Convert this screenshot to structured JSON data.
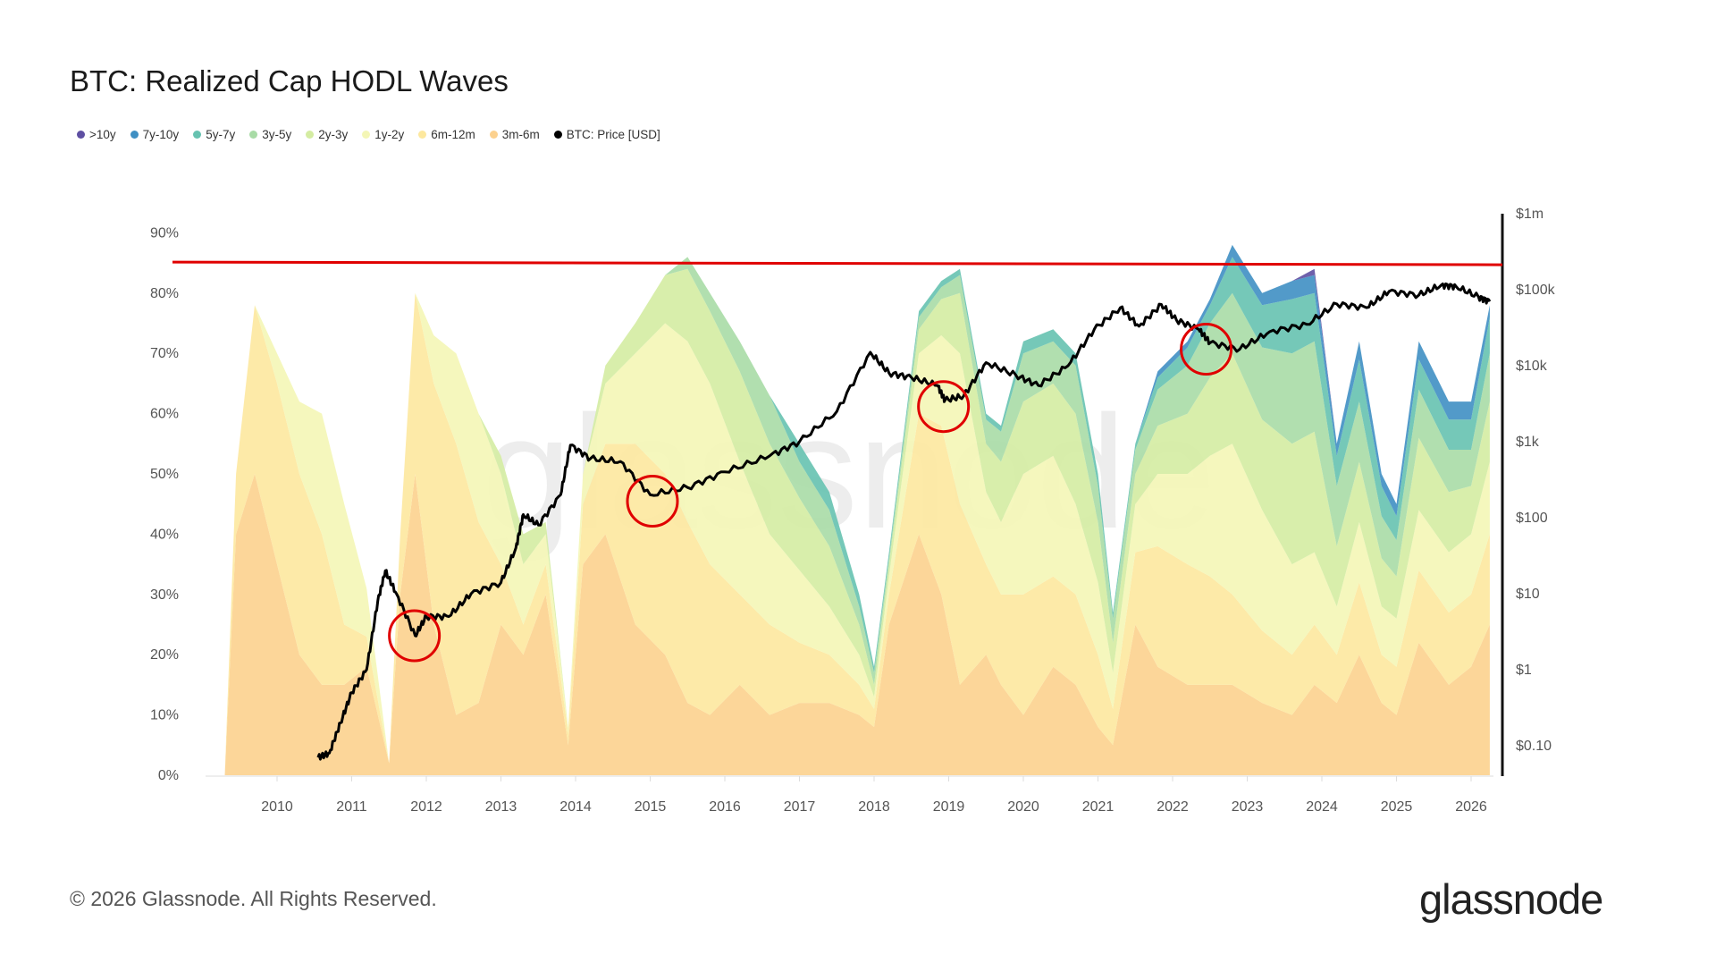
{
  "chart_data": {
    "type": "area",
    "title": "BTC: Realized Cap HODL Waves",
    "y_left_ticks": [
      "0%",
      "10%",
      "20%",
      "30%",
      "40%",
      "50%",
      "60%",
      "70%",
      "80%",
      "90%"
    ],
    "y_left_range": [
      0,
      90
    ],
    "y_right_ticks": [
      "$0.10",
      "$1",
      "$10",
      "$100",
      "$1k",
      "$10k",
      "$100k",
      "$1m"
    ],
    "y_right_range": [
      0.1,
      1000000
    ],
    "y_right_scale": "log",
    "x_ticks": [
      "2010",
      "2011",
      "2012",
      "2013",
      "2014",
      "2015",
      "2016",
      "2017",
      "2018",
      "2019",
      "2020",
      "2021",
      "2022",
      "2023",
      "2024",
      "2025",
      "2026"
    ],
    "x_range": [
      2009.05,
      2026.25
    ],
    "legend_placement": "top-left",
    "stacked": true,
    "dates": [
      2009.3,
      2009.45,
      2009.7,
      2010.0,
      2010.3,
      2010.6,
      2010.9,
      2011.2,
      2011.5,
      2011.65,
      2011.85,
      2012.1,
      2012.4,
      2012.7,
      2013.0,
      2013.3,
      2013.6,
      2013.9,
      2014.1,
      2014.4,
      2014.8,
      2015.2,
      2015.5,
      2015.8,
      2016.2,
      2016.6,
      2017.0,
      2017.4,
      2017.8,
      2018.0,
      2018.2,
      2018.6,
      2018.9,
      2019.15,
      2019.5,
      2019.7,
      2020.0,
      2020.4,
      2020.7,
      2021.0,
      2021.2,
      2021.5,
      2021.8,
      2022.2,
      2022.5,
      2022.8,
      2023.2,
      2023.6,
      2023.9,
      2024.2,
      2024.5,
      2024.8,
      2025.0,
      2025.3,
      2025.7,
      2026.0,
      2026.25
    ],
    "series": [
      {
        "name": ">10y",
        "color": "#5e4fa2",
        "values": [
          0,
          0,
          0,
          0,
          0,
          0,
          0,
          0,
          0,
          0,
          0,
          0,
          0,
          0,
          0,
          0,
          0,
          0,
          0,
          0,
          0,
          0,
          0,
          0,
          0,
          0,
          0,
          0,
          0,
          0,
          0,
          0,
          0,
          0,
          0,
          0,
          0,
          0,
          0,
          0,
          0,
          0,
          0,
          0,
          0,
          0,
          0,
          0,
          1,
          0,
          0,
          0,
          0,
          0,
          0,
          0,
          0
        ]
      },
      {
        "name": "7y-10y",
        "color": "#3f8fc3",
        "values": [
          0,
          0,
          0,
          0,
          0,
          0,
          0,
          0,
          0,
          0,
          0,
          0,
          0,
          0,
          0,
          0,
          0,
          0,
          0,
          0,
          0,
          0,
          0,
          0,
          0,
          0,
          0,
          0,
          0,
          0,
          0,
          0,
          0,
          0,
          0,
          0,
          0,
          0,
          0,
          0,
          0,
          0,
          1,
          1,
          1,
          2,
          2,
          3,
          3,
          2,
          3,
          2,
          2,
          3,
          3,
          3,
          2
        ]
      },
      {
        "name": "5y-7y",
        "color": "#66c2b0",
        "values": [
          0,
          0,
          0,
          0,
          0,
          0,
          0,
          0,
          0,
          0,
          0,
          0,
          0,
          0,
          0,
          0,
          0,
          0,
          0,
          0,
          0,
          0,
          0,
          0,
          0,
          0,
          3,
          3,
          2,
          1,
          1,
          1,
          1,
          1,
          1,
          1,
          2,
          2,
          2,
          2,
          1,
          1,
          2,
          3,
          3,
          6,
          7,
          9,
          8,
          5,
          7,
          5,
          4,
          5,
          5,
          5,
          6
        ]
      },
      {
        "name": "3y-5y",
        "color": "#a8dba6",
        "values": [
          0,
          0,
          0,
          0,
          0,
          0,
          0,
          0,
          0,
          0,
          0,
          0,
          0,
          0,
          0,
          0,
          0,
          0,
          0,
          0,
          0,
          0,
          2,
          3,
          5,
          8,
          6,
          6,
          3,
          2,
          1,
          2,
          2,
          3,
          4,
          5,
          8,
          7,
          8,
          6,
          4,
          4,
          6,
          8,
          9,
          10,
          12,
          15,
          15,
          10,
          10,
          7,
          6,
          8,
          7,
          6,
          8
        ]
      },
      {
        "name": "2y-3y",
        "color": "#d4eca2",
        "values": [
          0,
          0,
          0,
          0,
          0,
          0,
          0,
          0,
          0,
          0,
          0,
          0,
          0,
          0,
          3,
          5,
          2,
          0,
          0,
          3,
          5,
          8,
          12,
          12,
          15,
          15,
          12,
          10,
          5,
          2,
          2,
          4,
          6,
          10,
          8,
          10,
          12,
          12,
          15,
          10,
          5,
          5,
          8,
          10,
          13,
          15,
          15,
          20,
          20,
          10,
          10,
          8,
          7,
          12,
          10,
          8,
          10
        ]
      },
      {
        "name": "1y-2y",
        "color": "#f4f6b6",
        "values": [
          0,
          0,
          0,
          5,
          12,
          20,
          20,
          8,
          0,
          0,
          0,
          8,
          15,
          18,
          15,
          10,
          5,
          1,
          5,
          10,
          15,
          25,
          30,
          30,
          22,
          15,
          12,
          8,
          5,
          2,
          3,
          10,
          15,
          25,
          12,
          12,
          20,
          20,
          15,
          12,
          6,
          8,
          12,
          15,
          20,
          25,
          20,
          15,
          12,
          8,
          10,
          8,
          8,
          10,
          10,
          10,
          12
        ]
      },
      {
        "name": "6m-12m",
        "color": "#fde89e",
        "values": [
          0,
          10,
          28,
          30,
          30,
          25,
          10,
          5,
          0,
          10,
          30,
          40,
          45,
          30,
          10,
          5,
          5,
          2,
          10,
          15,
          30,
          30,
          30,
          25,
          15,
          15,
          10,
          8,
          5,
          3,
          5,
          20,
          28,
          30,
          15,
          15,
          20,
          15,
          15,
          12,
          6,
          12,
          20,
          20,
          18,
          15,
          12,
          10,
          10,
          8,
          12,
          8,
          8,
          12,
          12,
          12,
          15
        ]
      },
      {
        "name": "3m-6m",
        "color": "#fcd18e",
        "values": [
          0,
          40,
          50,
          35,
          20,
          15,
          15,
          18,
          2,
          30,
          50,
          25,
          10,
          12,
          25,
          20,
          30,
          5,
          35,
          40,
          25,
          20,
          12,
          10,
          15,
          10,
          12,
          12,
          10,
          8,
          25,
          40,
          30,
          15,
          20,
          15,
          10,
          18,
          15,
          8,
          5,
          25,
          18,
          15,
          15,
          15,
          12,
          10,
          15,
          12,
          20,
          12,
          10,
          22,
          15,
          18,
          25
        ]
      }
    ],
    "price_series": {
      "name": "BTC: Price [USD]",
      "color": "#000000",
      "dates": [
        2010.55,
        2010.7,
        2010.85,
        2011.0,
        2011.2,
        2011.35,
        2011.45,
        2011.6,
        2011.85,
        2012.0,
        2012.3,
        2012.6,
        2013.0,
        2013.2,
        2013.3,
        2013.5,
        2013.8,
        2013.93,
        2014.2,
        2014.6,
        2015.0,
        2015.5,
        2016.0,
        2016.6,
        2017.0,
        2017.5,
        2017.95,
        2018.2,
        2018.5,
        2018.85,
        2018.95,
        2019.2,
        2019.5,
        2019.9,
        2020.2,
        2020.6,
        2020.95,
        2021.3,
        2021.55,
        2021.85,
        2022.05,
        2022.35,
        2022.5,
        2022.9,
        2023.3,
        2023.8,
        2024.2,
        2024.6,
        2024.9,
        2025.3,
        2025.6,
        2025.8,
        2026.1,
        2026.25
      ],
      "values": [
        0.07,
        0.08,
        0.2,
        0.5,
        1,
        8,
        20,
        10,
        2.8,
        5,
        5,
        10,
        14,
        40,
        110,
        80,
        200,
        900,
        600,
        550,
        200,
        250,
        400,
        650,
        1000,
        2500,
        15000,
        8000,
        7000,
        5500,
        3500,
        4000,
        11000,
        7500,
        5500,
        10000,
        30000,
        58000,
        33000,
        64000,
        40000,
        30000,
        20000,
        16500,
        28000,
        35000,
        65000,
        58000,
        95000,
        85000,
        115000,
        110000,
        80000,
        70000
      ]
    },
    "reference_line": {
      "color": "#e00000",
      "y_percent": 85
    },
    "highlight_circles": [
      {
        "date": 2011.84,
        "price": 2.8,
        "color": "#e00000"
      },
      {
        "date": 2015.03,
        "price": 165,
        "color": "#e00000"
      },
      {
        "date": 2018.93,
        "price": 2900,
        "color": "#e00000"
      },
      {
        "date": 2022.45,
        "price": 16500,
        "color": "#e00000"
      }
    ],
    "watermark": "glassnode"
  },
  "footer": {
    "copyright": "© 2026 Glassnode. All Rights Reserved.",
    "logo": "glassnode"
  }
}
